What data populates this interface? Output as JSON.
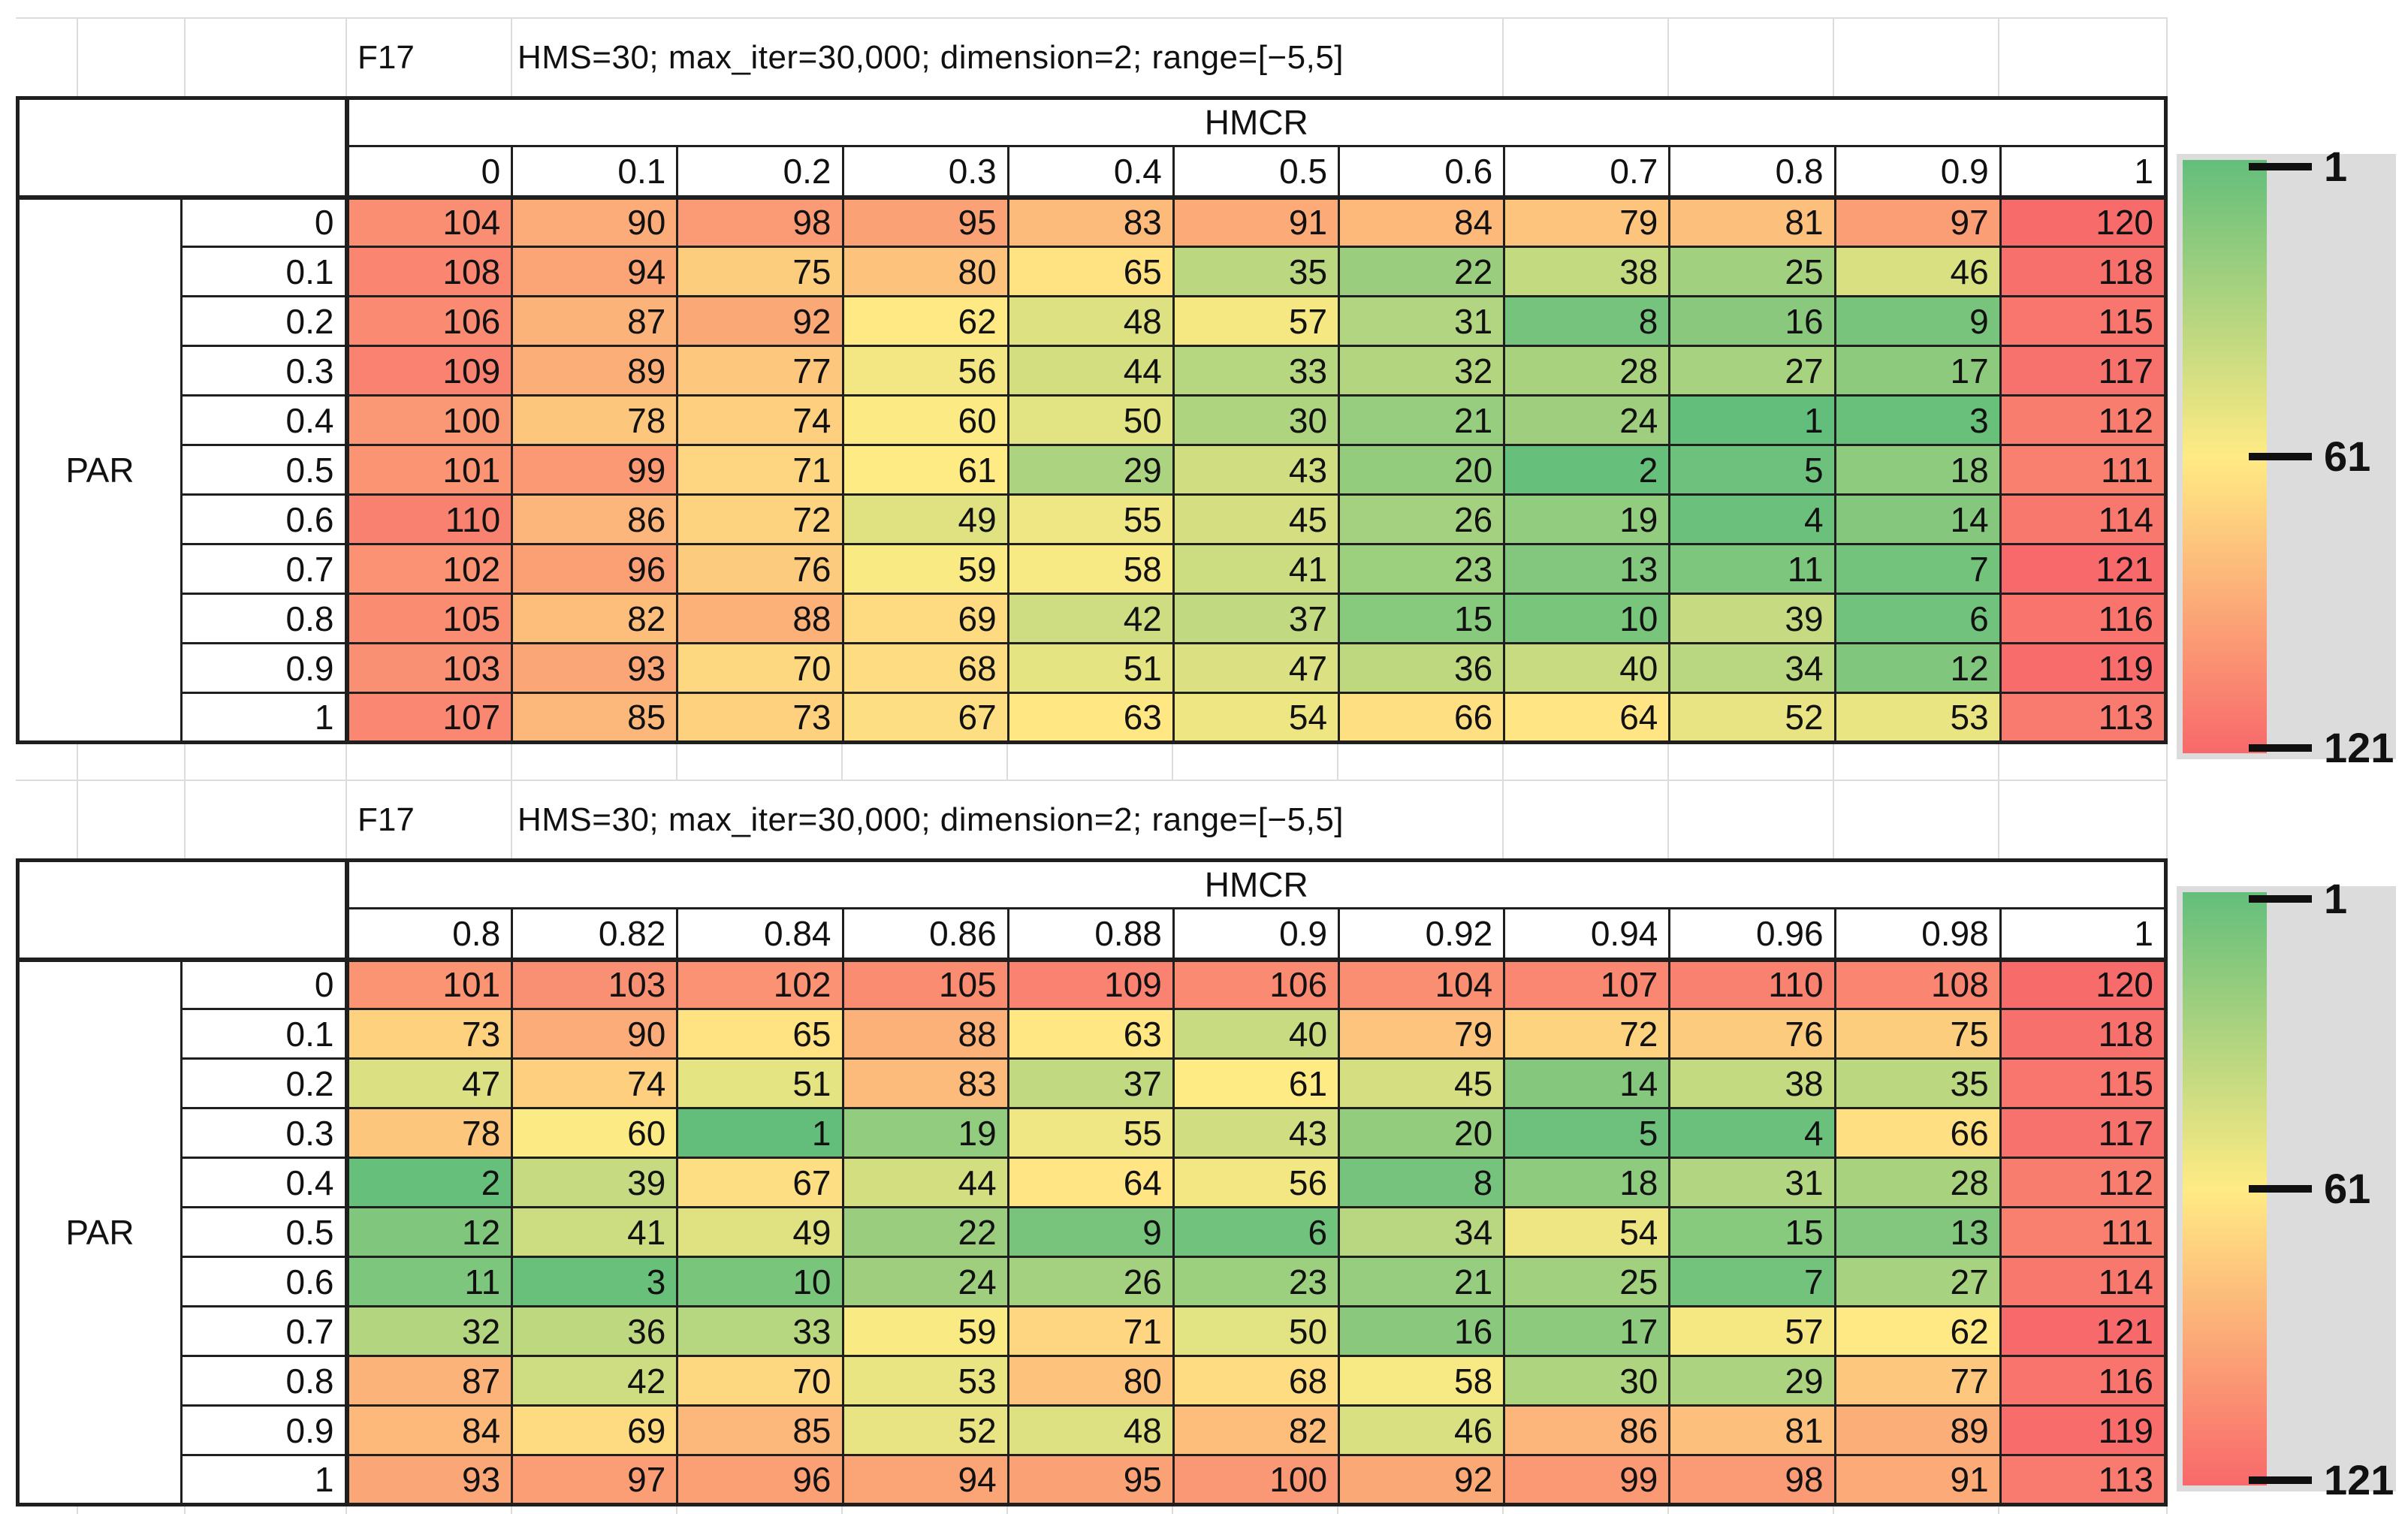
{
  "chart_data": [
    {
      "type": "heatmap",
      "title": "F17",
      "subtitle": "HMS=30; max_iter=30,000; dimension=2; range=[−5,5]",
      "x_axis_label": "HMCR",
      "y_axis_label": "PAR",
      "columns": [
        "0",
        "0.1",
        "0.2",
        "0.3",
        "0.4",
        "0.5",
        "0.6",
        "0.7",
        "0.8",
        "0.9",
        "1"
      ],
      "rows": [
        "0",
        "0.1",
        "0.2",
        "0.3",
        "0.4",
        "0.5",
        "0.6",
        "0.7",
        "0.8",
        "0.9",
        "1"
      ],
      "values": [
        [
          104,
          90,
          98,
          95,
          83,
          91,
          84,
          79,
          81,
          97,
          120
        ],
        [
          108,
          94,
          75,
          80,
          65,
          35,
          22,
          38,
          25,
          46,
          118
        ],
        [
          106,
          87,
          92,
          62,
          48,
          57,
          31,
          8,
          16,
          9,
          115
        ],
        [
          109,
          89,
          77,
          56,
          44,
          33,
          32,
          28,
          27,
          17,
          117
        ],
        [
          100,
          78,
          74,
          60,
          50,
          30,
          21,
          24,
          1,
          3,
          112
        ],
        [
          101,
          99,
          71,
          61,
          29,
          43,
          20,
          2,
          5,
          18,
          111
        ],
        [
          110,
          86,
          72,
          49,
          55,
          45,
          26,
          19,
          4,
          14,
          114
        ],
        [
          102,
          96,
          76,
          59,
          58,
          41,
          23,
          13,
          11,
          7,
          121
        ],
        [
          105,
          82,
          88,
          69,
          42,
          37,
          15,
          10,
          39,
          6,
          116
        ],
        [
          103,
          93,
          70,
          68,
          51,
          47,
          36,
          40,
          34,
          12,
          119
        ],
        [
          107,
          85,
          73,
          67,
          63,
          54,
          66,
          64,
          52,
          53,
          113
        ]
      ]
    },
    {
      "type": "heatmap",
      "title": "F17",
      "subtitle": "HMS=30; max_iter=30,000; dimension=2; range=[−5,5]",
      "x_axis_label": "HMCR",
      "y_axis_label": "PAR",
      "columns": [
        "0.8",
        "0.82",
        "0.84",
        "0.86",
        "0.88",
        "0.9",
        "0.92",
        "0.94",
        "0.96",
        "0.98",
        "1"
      ],
      "rows": [
        "0",
        "0.1",
        "0.2",
        "0.3",
        "0.4",
        "0.5",
        "0.6",
        "0.7",
        "0.8",
        "0.9",
        "1"
      ],
      "values": [
        [
          101,
          103,
          102,
          105,
          109,
          106,
          104,
          107,
          110,
          108,
          120
        ],
        [
          73,
          90,
          65,
          88,
          63,
          40,
          79,
          72,
          76,
          75,
          118
        ],
        [
          47,
          74,
          51,
          83,
          37,
          61,
          45,
          14,
          38,
          35,
          115
        ],
        [
          78,
          60,
          1,
          19,
          55,
          43,
          20,
          5,
          4,
          66,
          117
        ],
        [
          2,
          39,
          67,
          44,
          64,
          56,
          8,
          18,
          31,
          28,
          112
        ],
        [
          12,
          41,
          49,
          22,
          9,
          6,
          34,
          54,
          15,
          13,
          111
        ],
        [
          11,
          3,
          10,
          24,
          26,
          23,
          21,
          25,
          7,
          27,
          114
        ],
        [
          32,
          36,
          33,
          59,
          71,
          50,
          16,
          17,
          57,
          62,
          121
        ],
        [
          87,
          42,
          70,
          53,
          80,
          68,
          58,
          30,
          29,
          77,
          116
        ],
        [
          84,
          69,
          85,
          52,
          48,
          82,
          46,
          86,
          81,
          89,
          119
        ],
        [
          93,
          97,
          96,
          94,
          95,
          100,
          92,
          99,
          98,
          91,
          113
        ]
      ]
    }
  ],
  "legend": {
    "ticks": [
      "1",
      "61",
      "121"
    ],
    "min": 1,
    "mid": 61,
    "max": 121
  },
  "colors": {
    "scale_min_green": "#63BE7B",
    "scale_mid_yellow": "#FFEB84",
    "scale_max_red": "#F8696B",
    "legend_background": "#DCDCDC"
  }
}
